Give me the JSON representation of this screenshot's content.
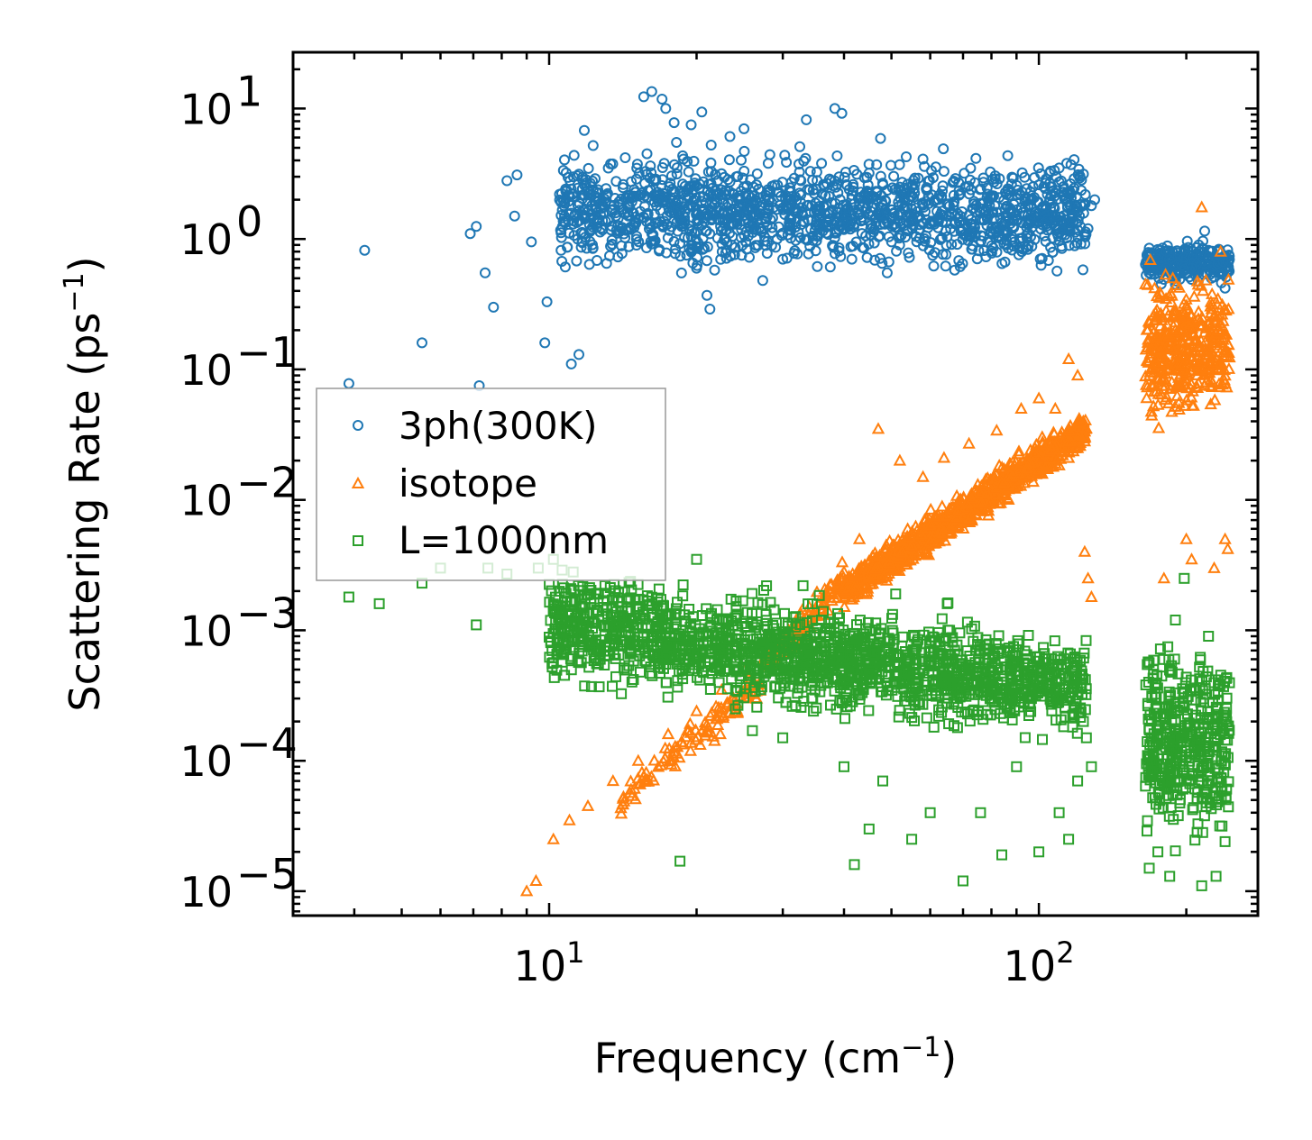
{
  "chart_data": {
    "type": "scatter",
    "title": "",
    "xlabel": "Frequency (cm",
    "xlabel_sup": "−1",
    "xlabel_end": ")",
    "ylabel": "Scattering Rate (ps",
    "ylabel_sup": "−1",
    "ylabel_end": ")",
    "xscale": "log",
    "yscale": "log",
    "xlim": [
      3.0,
      280
    ],
    "ylim": [
      6.5e-06,
      27
    ],
    "x_ticks": [
      {
        "value": 10,
        "base": "10",
        "exp": "1"
      },
      {
        "value": 100,
        "base": "10",
        "exp": "2"
      }
    ],
    "y_ticks": [
      {
        "value": 10,
        "base": "10",
        "exp": "1"
      },
      {
        "value": 1,
        "base": "10",
        "exp": "0"
      },
      {
        "value": 0.1,
        "base": "10",
        "exp": "−1"
      },
      {
        "value": 0.01,
        "base": "10",
        "exp": "−2"
      },
      {
        "value": 0.001,
        "base": "10",
        "exp": "−3"
      },
      {
        "value": 0.0001,
        "base": "10",
        "exp": "−4"
      },
      {
        "value": 1e-05,
        "base": "10",
        "exp": "−5"
      }
    ],
    "legend_position": "center-left",
    "series": [
      {
        "name": "3ph(300K)",
        "marker": "circle",
        "color": "#1f77b4",
        "points": [
          [
            3.9,
            0.078
          ],
          [
            4.2,
            0.82
          ],
          [
            5.5,
            0.16
          ],
          [
            7.2,
            0.075
          ],
          [
            6.9,
            1.1
          ],
          [
            7.1,
            1.25
          ],
          [
            7.4,
            0.55
          ],
          [
            7.7,
            0.3
          ],
          [
            8.2,
            2.8
          ],
          [
            8.6,
            3.1
          ],
          [
            8.5,
            1.5
          ],
          [
            9.2,
            0.95
          ],
          [
            9.8,
            0.16
          ],
          [
            9.9,
            0.33
          ],
          [
            10.5,
            2.2
          ],
          [
            11.1,
            0.11
          ],
          [
            11.5,
            0.13
          ],
          [
            11.8,
            6.8
          ],
          [
            12.3,
            5.2
          ],
          [
            12.5,
            1.7
          ],
          [
            13.1,
            0.65
          ],
          [
            14.3,
            4.2
          ],
          [
            14.8,
            1.6
          ],
          [
            15.6,
            12.3
          ],
          [
            16.2,
            13.5
          ],
          [
            17.0,
            11.8
          ],
          [
            17.3,
            10.0
          ],
          [
            18.0,
            7.8
          ],
          [
            18.2,
            5.5
          ],
          [
            18.8,
            4.1
          ],
          [
            19.5,
            7.5
          ],
          [
            19.9,
            2.9
          ],
          [
            20.5,
            9.4
          ],
          [
            21.3,
            0.29
          ],
          [
            21.0,
            0.37
          ],
          [
            22.3,
            1.4
          ],
          [
            23.4,
            6.1
          ],
          [
            24.1,
            3.0
          ],
          [
            25.0,
            7.0
          ],
          [
            25.8,
            1.9
          ],
          [
            26.5,
            2.6
          ],
          [
            27.3,
            0.48
          ],
          [
            28.0,
            3.8
          ],
          [
            29.2,
            1.0
          ],
          [
            30.0,
            0.7
          ],
          [
            31.0,
            2.0
          ],
          [
            32.5,
            5.1
          ],
          [
            33.5,
            8.2
          ],
          [
            34.8,
            1.6
          ],
          [
            36.0,
            3.8
          ],
          [
            37.5,
            0.61
          ],
          [
            38.3,
            10.0
          ],
          [
            39.6,
            9.2
          ],
          [
            41.0,
            2.4
          ],
          [
            43.0,
            1.8
          ],
          [
            45.0,
            3.2
          ],
          [
            47.5,
            5.9
          ],
          [
            49.0,
            0.55
          ],
          [
            52.0,
            2.5
          ],
          [
            55.0,
            1.4
          ],
          [
            58.0,
            4.1
          ],
          [
            61.0,
            0.62
          ],
          [
            64.0,
            3.3
          ],
          [
            67.0,
            1.9
          ],
          [
            70.0,
            1.2
          ],
          [
            74.0,
            2.7
          ],
          [
            78.0,
            0.73
          ],
          [
            82.0,
            1.6
          ],
          [
            86.0,
            2.2
          ],
          [
            90.0,
            1.4
          ],
          [
            95.0,
            1.8
          ],
          [
            100.0,
            2.6
          ],
          [
            105.0,
            3.2
          ],
          [
            110.0,
            3.5
          ],
          [
            114.0,
            3.8
          ],
          [
            118.0,
            2.9
          ],
          [
            121.0,
            1.5
          ],
          [
            123.0,
            0.58
          ],
          [
            126.0,
            1.2
          ],
          [
            128.0,
            1.8
          ],
          [
            130.0,
            2.0
          ],
          [
            168.0,
            0.85
          ],
          [
            175.0,
            0.55
          ],
          [
            182.0,
            0.8
          ],
          [
            190.0,
            0.45
          ],
          [
            198.0,
            0.72
          ],
          [
            205.0,
            0.6
          ],
          [
            212.0,
            0.9
          ],
          [
            218.0,
            1.15
          ],
          [
            225.0,
            0.5
          ],
          [
            232.0,
            0.8
          ],
          [
            240.0,
            0.42
          ]
        ],
        "dense_regions": [
          {
            "x": [
              10.5,
              125
            ],
            "y_center": 1.6,
            "y_spread_decades": 0.35,
            "count": 1500
          },
          {
            "x": [
              165,
              245
            ],
            "y_center": 0.65,
            "y_spread_decades": 0.12,
            "count": 260
          }
        ]
      },
      {
        "name": "isotope",
        "marker": "triangle",
        "color": "#ff7f0e",
        "points": [
          [
            9.0,
            1e-05
          ],
          [
            9.4,
            1.2e-05
          ],
          [
            10.2,
            2.5e-05
          ],
          [
            11.0,
            3.5e-05
          ],
          [
            12.0,
            4.5e-05
          ],
          [
            13.5,
            7e-05
          ],
          [
            15.2,
            0.0001
          ],
          [
            17.5,
            0.00016
          ],
          [
            20.0,
            0.00024
          ],
          [
            22.5,
            0.00035
          ],
          [
            25.0,
            0.0005
          ],
          [
            28.0,
            0.0008
          ],
          [
            32.0,
            0.0012
          ],
          [
            35.5,
            0.0016
          ],
          [
            40.0,
            0.0028
          ],
          [
            43.0,
            0.005
          ],
          [
            47.0,
            0.035
          ],
          [
            52.0,
            0.02
          ],
          [
            58.0,
            0.015
          ],
          [
            64.0,
            0.021
          ],
          [
            72.0,
            0.027
          ],
          [
            82.0,
            0.034
          ],
          [
            92.0,
            0.05
          ],
          [
            100.0,
            0.06
          ],
          [
            108.0,
            0.05
          ],
          [
            115.0,
            0.12
          ],
          [
            120.0,
            0.09
          ],
          [
            124.0,
            0.004
          ],
          [
            126.0,
            0.0025
          ],
          [
            128.0,
            0.0018
          ],
          [
            165.0,
            0.45
          ],
          [
            175.0,
            0.25
          ],
          [
            180.0,
            0.0025
          ],
          [
            190.0,
            0.2
          ],
          [
            200.0,
            0.005
          ],
          [
            205.0,
            0.0035
          ],
          [
            215.0,
            1.75
          ],
          [
            220.0,
            0.08
          ],
          [
            228.0,
            0.003
          ],
          [
            235.0,
            0.8
          ],
          [
            240.0,
            0.005
          ],
          [
            243.0,
            0.0042
          ]
        ],
        "dense_regions": [
          {
            "x": [
              14,
              27
            ],
            "y_from": 5e-05,
            "y_to": 0.0004,
            "trend": "rising",
            "count": 120
          },
          {
            "x": [
              27,
              40
            ],
            "y_from": 0.0005,
            "y_to": 0.0025,
            "trend": "rising",
            "count": 120
          },
          {
            "x": [
              40,
              125
            ],
            "y_from": 0.002,
            "y_to": 0.035,
            "trend": "rising",
            "count": 1100
          },
          {
            "x": [
              165,
              245
            ],
            "y_center": 0.15,
            "y_spread_decades": 0.45,
            "count": 420
          }
        ]
      },
      {
        "name": "L=1000nm",
        "marker": "square",
        "color": "#2ca02c",
        "points": [
          [
            3.9,
            0.0018
          ],
          [
            4.5,
            0.0016
          ],
          [
            5.5,
            0.0023
          ],
          [
            6.0,
            0.003
          ],
          [
            7.1,
            0.0011
          ],
          [
            7.5,
            0.003
          ],
          [
            8.2,
            0.0027
          ],
          [
            9.5,
            0.003
          ],
          [
            10.2,
            0.0035
          ],
          [
            11.2,
            0.0028
          ],
          [
            12.2,
            0.00037
          ],
          [
            13.0,
            0.0022
          ],
          [
            15.0,
            0.0017
          ],
          [
            17.0,
            0.0012
          ],
          [
            18.5,
            1.7e-05
          ],
          [
            20.0,
            0.0035
          ],
          [
            22.0,
            0.0012
          ],
          [
            24.0,
            0.00025
          ],
          [
            26.0,
            0.00017
          ],
          [
            28.0,
            0.0009
          ],
          [
            30.0,
            0.00015
          ],
          [
            33.0,
            0.0022
          ],
          [
            36.0,
            0.0012
          ],
          [
            38.0,
            0.0006
          ],
          [
            40.0,
            9e-05
          ],
          [
            42.0,
            1.6e-05
          ],
          [
            45.0,
            3e-05
          ],
          [
            48.0,
            7e-05
          ],
          [
            51.0,
            0.0019
          ],
          [
            55.0,
            2.5e-05
          ],
          [
            60.0,
            4e-05
          ],
          [
            65.0,
            0.0016
          ],
          [
            70.0,
            1.2e-05
          ],
          [
            76.0,
            4e-05
          ],
          [
            84.0,
            1.9e-05
          ],
          [
            90.0,
            9e-05
          ],
          [
            95.0,
            0.0003
          ],
          [
            100.0,
            2e-05
          ],
          [
            110.0,
            4e-05
          ],
          [
            115.0,
            2.5e-05
          ],
          [
            120.0,
            7e-05
          ],
          [
            125.0,
            0.00015
          ],
          [
            128.0,
            9e-05
          ],
          [
            168.0,
            1.5e-05
          ],
          [
            175.0,
            2e-05
          ],
          [
            185.0,
            1.3e-05
          ],
          [
            190.0,
            0.0012
          ],
          [
            198.0,
            0.0025
          ],
          [
            205.0,
            8e-05
          ],
          [
            215.0,
            1.1e-05
          ],
          [
            222.0,
            0.0009
          ],
          [
            230.0,
            1.3e-05
          ],
          [
            240.0,
            2.4e-05
          ]
        ],
        "dense_regions": [
          {
            "x": [
              10,
              125
            ],
            "y_from": 0.0011,
            "y_to": 0.00035,
            "y_spread_decades": 0.35,
            "count": 1700
          },
          {
            "x": [
              165,
              245
            ],
            "y_center": 0.00015,
            "y_spread_decades": 0.6,
            "count": 420
          }
        ]
      }
    ]
  }
}
